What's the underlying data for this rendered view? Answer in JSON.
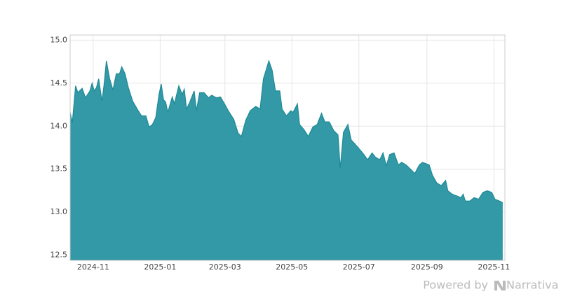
{
  "chart_data": {
    "type": "area",
    "x": [
      "2024-10-11",
      "2024-10-13",
      "2024-10-16",
      "2024-10-18",
      "2024-10-22",
      "2024-10-25",
      "2024-10-29",
      "2024-10-31",
      "2024-11-02",
      "2024-11-04",
      "2024-11-06",
      "2024-11-09",
      "2024-11-11",
      "2024-11-13",
      "2024-11-16",
      "2024-11-19",
      "2024-11-22",
      "2024-11-25",
      "2024-11-27",
      "2024-11-30",
      "2024-12-03",
      "2024-12-07",
      "2024-12-12",
      "2024-12-15",
      "2024-12-19",
      "2024-12-22",
      "2024-12-25",
      "2024-12-28",
      "2024-12-31",
      "2025-01-02",
      "2025-01-04",
      "2025-01-06",
      "2025-01-08",
      "2025-01-12",
      "2025-01-14",
      "2025-01-18",
      "2025-01-21",
      "2025-01-23",
      "2025-01-25",
      "2025-01-28",
      "2025-02-01",
      "2025-02-03",
      "2025-02-06",
      "2025-02-10",
      "2025-02-14",
      "2025-02-17",
      "2025-02-21",
      "2025-02-25",
      "2025-03-01",
      "2025-03-04",
      "2025-03-09",
      "2025-03-13",
      "2025-03-16",
      "2025-03-20",
      "2025-03-24",
      "2025-03-29",
      "2025-04-02",
      "2025-04-05",
      "2025-04-10",
      "2025-04-13",
      "2025-04-16",
      "2025-04-20",
      "2025-04-22",
      "2025-04-26",
      "2025-04-30",
      "2025-05-02",
      "2025-05-06",
      "2025-05-08",
      "2025-05-12",
      "2025-05-16",
      "2025-05-20",
      "2025-05-24",
      "2025-05-28",
      "2025-05-31",
      "2025-06-04",
      "2025-06-08",
      "2025-06-12",
      "2025-06-14",
      "2025-06-17",
      "2025-06-21",
      "2025-06-24",
      "2025-06-27",
      "2025-07-01",
      "2025-07-05",
      "2025-07-09",
      "2025-07-13",
      "2025-07-16",
      "2025-07-20",
      "2025-07-23",
      "2025-07-26",
      "2025-07-29",
      "2025-08-02",
      "2025-08-06",
      "2025-08-09",
      "2025-08-13",
      "2025-08-17",
      "2025-08-21",
      "2025-08-25",
      "2025-08-28",
      "2025-09-03",
      "2025-09-06",
      "2025-09-10",
      "2025-09-14",
      "2025-09-18",
      "2025-09-20",
      "2025-09-24",
      "2025-09-28",
      "2025-10-02",
      "2025-10-04",
      "2025-10-06",
      "2025-10-10",
      "2025-10-14",
      "2025-10-18",
      "2025-10-22",
      "2025-10-26",
      "2025-10-30",
      "2025-11-02",
      "2025-11-06",
      "2025-11-09"
    ],
    "values": [
      14.16,
      14.04,
      14.47,
      14.39,
      14.44,
      14.33,
      14.41,
      14.5,
      14.41,
      14.45,
      14.55,
      14.29,
      14.49,
      14.76,
      14.55,
      14.42,
      14.61,
      14.61,
      14.69,
      14.61,
      14.45,
      14.29,
      14.18,
      14.12,
      14.12,
      13.99,
      14.02,
      14.1,
      14.37,
      14.49,
      14.31,
      14.28,
      14.16,
      14.34,
      14.26,
      14.47,
      14.37,
      14.43,
      14.2,
      14.28,
      14.41,
      14.18,
      14.39,
      14.39,
      14.33,
      14.36,
      14.33,
      14.34,
      14.25,
      14.18,
      14.08,
      13.92,
      13.88,
      14.07,
      14.18,
      14.23,
      14.2,
      14.55,
      14.76,
      14.65,
      14.41,
      14.41,
      14.2,
      14.12,
      14.18,
      14.16,
      14.26,
      14.02,
      13.96,
      13.88,
      13.99,
      14.02,
      14.15,
      14.05,
      14.05,
      13.95,
      13.9,
      13.51,
      13.93,
      14.02,
      13.84,
      13.8,
      13.74,
      13.68,
      13.61,
      13.69,
      13.64,
      13.61,
      13.69,
      13.54,
      13.67,
      13.69,
      13.55,
      13.58,
      13.55,
      13.5,
      13.45,
      13.55,
      13.58,
      13.55,
      13.43,
      13.34,
      13.31,
      13.37,
      13.25,
      13.21,
      13.19,
      13.17,
      13.21,
      13.13,
      13.13,
      13.17,
      13.15,
      13.23,
      13.25,
      13.23,
      13.15,
      13.13,
      13.11
    ],
    "color": "#3399a6",
    "line_color": "#1f8a96",
    "xlim": [
      "2024-10-11",
      "2025-11-11"
    ],
    "xticks": [
      {
        "value": "2024-11-01",
        "label": "2024-11"
      },
      {
        "value": "2025-01-01",
        "label": "2025-01"
      },
      {
        "value": "2025-03-01",
        "label": "2025-03"
      },
      {
        "value": "2025-05-01",
        "label": "2025-05"
      },
      {
        "value": "2025-07-01",
        "label": "2025-07"
      },
      {
        "value": "2025-09-01",
        "label": "2025-09"
      },
      {
        "value": "2025-11-01",
        "label": "2025-11"
      }
    ],
    "ylim": [
      12.44,
      15.06
    ],
    "yticks": [
      12.5,
      {
        "value": 13,
        "label": "13.0"
      },
      13.5,
      {
        "value": 14,
        "label": "14.0"
      },
      14.5,
      {
        "value": 15,
        "label": "15.0"
      }
    ],
    "grid": true
  },
  "footer": {
    "text": "Powered by",
    "brand": "Narrativa"
  }
}
